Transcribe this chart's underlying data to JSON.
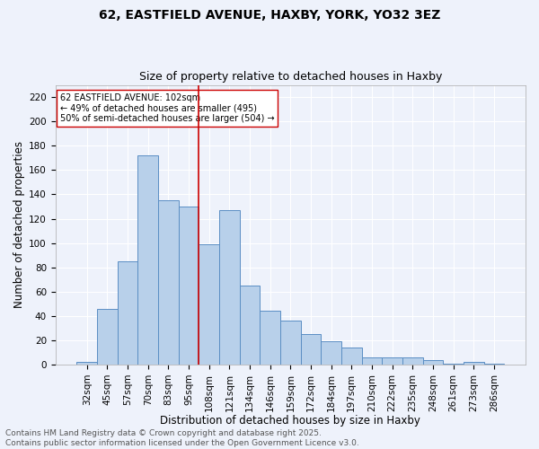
{
  "title1": "62, EASTFIELD AVENUE, HAXBY, YORK, YO32 3EZ",
  "title2": "Size of property relative to detached houses in Haxby",
  "xlabel": "Distribution of detached houses by size in Haxby",
  "ylabel": "Number of detached properties",
  "bin_labels": [
    "32sqm",
    "45sqm",
    "57sqm",
    "70sqm",
    "83sqm",
    "95sqm",
    "108sqm",
    "121sqm",
    "134sqm",
    "146sqm",
    "159sqm",
    "172sqm",
    "184sqm",
    "197sqm",
    "210sqm",
    "222sqm",
    "235sqm",
    "248sqm",
    "261sqm",
    "273sqm",
    "286sqm"
  ],
  "bar_values": [
    2,
    46,
    85,
    172,
    135,
    130,
    99,
    127,
    65,
    44,
    36,
    25,
    19,
    14,
    6,
    6,
    6,
    4,
    1,
    2,
    1
  ],
  "bar_color": "#b8d0ea",
  "bar_edge_color": "#5b8ec4",
  "background_color": "#eef2fb",
  "grid_color": "#ffffff",
  "vline_x_index": 5.5,
  "vline_color": "#cc0000",
  "annotation_text": "62 EASTFIELD AVENUE: 102sqm\n← 49% of detached houses are smaller (495)\n50% of semi-detached houses are larger (504) →",
  "annotation_box_color": "#ffffff",
  "annotation_border_color": "#cc0000",
  "footer_text": "Contains HM Land Registry data © Crown copyright and database right 2025.\nContains public sector information licensed under the Open Government Licence v3.0.",
  "ylim": [
    0,
    230
  ],
  "yticks": [
    0,
    20,
    40,
    60,
    80,
    100,
    120,
    140,
    160,
    180,
    200,
    220
  ],
  "title1_fontsize": 10,
  "title2_fontsize": 9,
  "xlabel_fontsize": 8.5,
  "ylabel_fontsize": 8.5,
  "tick_fontsize": 7.5,
  "footer_fontsize": 6.5,
  "annotation_fontsize": 7
}
